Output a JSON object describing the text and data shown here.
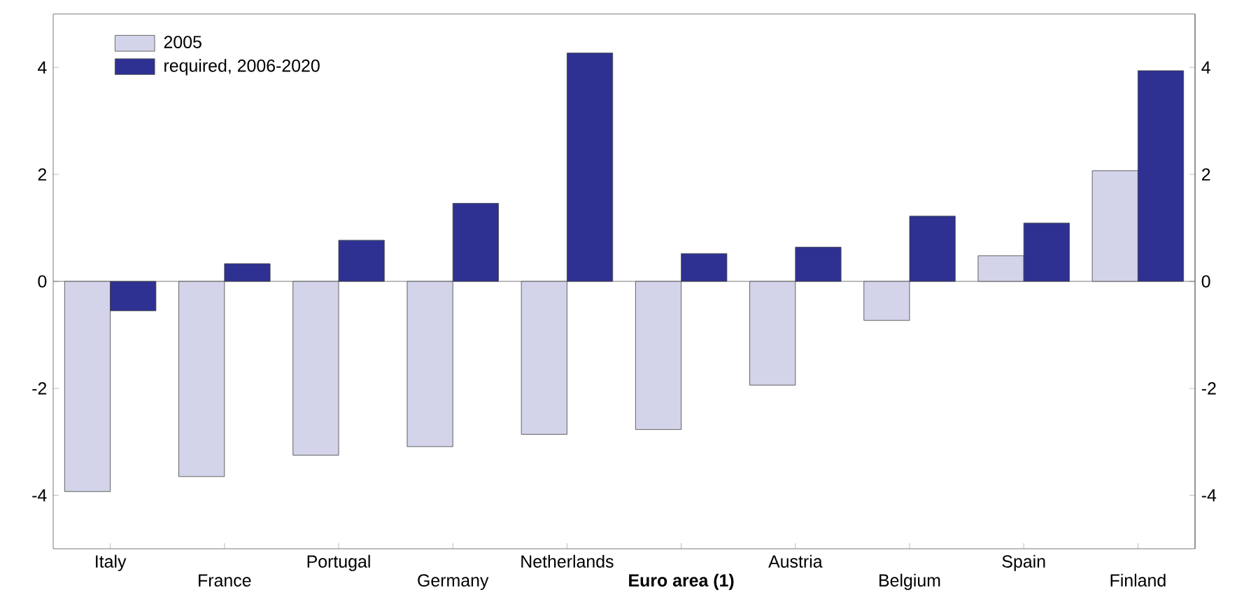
{
  "chart_data": {
    "type": "bar",
    "categories": [
      "Italy",
      "France",
      "Portugal",
      "Germany",
      "Netherlands",
      "**Euro area (1)**",
      "Austria",
      "Belgium",
      "Spain",
      "Finland"
    ],
    "series": [
      {
        "name": "2005",
        "color": "#d3d3ea",
        "values": [
          -3.93,
          -3.65,
          -3.25,
          -3.09,
          -2.86,
          -2.77,
          -1.94,
          -0.73,
          0.48,
          2.07
        ]
      },
      {
        "name": "required, 2006-2020",
        "color": "#2e3192",
        "values": [
          -0.55,
          0.33,
          0.77,
          1.46,
          4.27,
          0.52,
          0.64,
          1.22,
          1.09,
          3.94
        ]
      }
    ],
    "ylim": [
      -5,
      5
    ],
    "yticks": [
      -4,
      -2,
      0,
      2,
      4
    ],
    "y2lim": [
      -5,
      5
    ],
    "y2ticks": [
      -4,
      -2,
      0,
      2,
      4
    ],
    "legend": "top left",
    "ref_lines": [
      {
        "axis": "y",
        "value": 0
      }
    ]
  }
}
